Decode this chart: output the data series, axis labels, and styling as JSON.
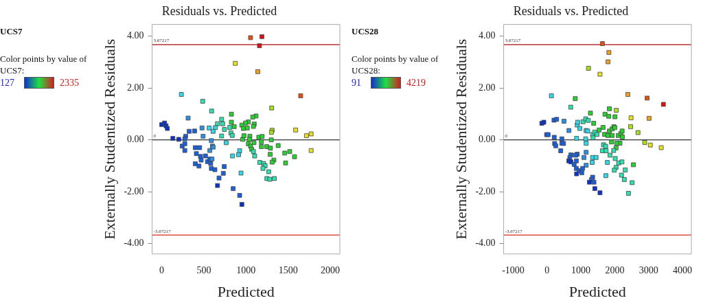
{
  "chart_data": [
    {
      "type": "scatter",
      "title": "Residuals vs. Predicted",
      "xlabel": "Predicted",
      "ylabel": "Externally Studentized Residuals",
      "annotations": [
        "UCS7",
        "Color points by value of UCS7:",
        "127",
        "2335"
      ],
      "x": [
        1054,
        1189,
        1160,
        873,
        1140,
        233,
        1649,
        486,
        1305,
        592,
        827,
        313,
        711,
        1119,
        1080,
        1028,
        995,
        951,
        1098,
        1088,
        969,
        1015,
        1310,
        1302,
        827,
        860,
        808,
        821,
        837,
        744,
        723,
        661,
        636,
        563,
        610,
        478,
        491,
        711,
        390,
        326,
        284,
        0,
        34,
        52,
        67,
        132,
        202,
        274,
        243,
        274,
        274,
        398,
        450,
        411,
        460,
        468,
        398,
        442,
        519,
        543,
        571,
        571,
        589,
        602,
        610,
        581,
        597,
        589,
        631,
        742,
        731,
        680,
        662,
        848,
        925,
        951,
        765,
        840,
        925,
        912,
        941,
        961,
        976,
        1046,
        1041,
        1028,
        1054,
        1095,
        1067,
        1088,
        1103,
        1152,
        1191,
        1183,
        1183,
        1300,
        1246,
        1290,
        1382,
        1287,
        1460,
        1519,
        1576,
        1470,
        1331,
        1310,
        1163,
        1209,
        1227,
        1201,
        1269,
        1248,
        1282,
        1336,
        1589,
        1718,
        1773,
        1773
      ],
      "values": [
        3.94,
        3.98,
        3.63,
        2.95,
        2.63,
        1.75,
        1.7,
        1.49,
        1.23,
        1.11,
        0.99,
        0.84,
        0.79,
        0.92,
        0.88,
        0.69,
        0.65,
        0.57,
        0.61,
        0.52,
        0.44,
        0.46,
        0.37,
        0.29,
        0.68,
        0.51,
        0.48,
        0.27,
        0.17,
        0.4,
        0.62,
        0.62,
        0.47,
        0.46,
        0.33,
        0.46,
        0.14,
        0.15,
        0.34,
        0.33,
        0.14,
        0.59,
        0.65,
        0.54,
        0.44,
        0.06,
        0.02,
        0.04,
        -0.24,
        -0.15,
        -0.41,
        -0.3,
        -0.3,
        -0.53,
        -0.64,
        -0.78,
        -0.92,
        -1.01,
        -0.62,
        -0.84,
        -0.74,
        -0.41,
        -0.03,
        -0.24,
        -0.28,
        -0.91,
        -0.74,
        -1.1,
        -1.15,
        -1.03,
        -1.29,
        -1.47,
        -1.76,
        -1.88,
        -2.14,
        -2.49,
        -0.11,
        -0.62,
        -0.42,
        -0.57,
        -1.28,
        0.02,
        0.16,
        0.14,
        0.02,
        -0.15,
        -0.24,
        -0.11,
        -0.36,
        -0.45,
        -0.62,
        0.1,
        0.13,
        -0.07,
        -0.26,
        0,
        -0.26,
        -0.32,
        -0.22,
        -0.56,
        -0.51,
        -0.45,
        -0.65,
        -0.89,
        -0.78,
        -0.86,
        -0.87,
        -0.91,
        -1,
        -1.1,
        -1.23,
        -1.49,
        -1.52,
        -1.49,
        0.38,
        0.16,
        0.23,
        -0.41
      ],
      "colors": [
        "#e85010",
        "#e01010",
        "#e01010",
        "#e8e020",
        "#f0a020",
        "#30d8e8",
        "#e85010",
        "#30e0b0",
        "#a8e020",
        "#30e0b0",
        "#28d030",
        "#2a8fe6",
        "#30e0b0",
        "#28d030",
        "#28d030",
        "#28d030",
        "#28d030",
        "#28d030",
        "#28d030",
        "#28d030",
        "#28d030",
        "#28d030",
        "#a8e020",
        "#a8e020",
        "#28d030",
        "#28d030",
        "#30e0b0",
        "#30e0b0",
        "#30e0b0",
        "#30e0b0",
        "#30e0b0",
        "#30e0b0",
        "#30d8e8",
        "#30d8e8",
        "#30d8e8",
        "#2a8fe6",
        "#2a8fe6",
        "#30e0b0",
        "#1a5fdc",
        "#1a5fdc",
        "#1a5fdc",
        "#0a32c8",
        "#0a32c8",
        "#0a32c8",
        "#0a32c8",
        "#0a32c8",
        "#0a32c8",
        "#1a5fdc",
        "#1a5fdc",
        "#1a5fdc",
        "#1a5fdc",
        "#1a5fdc",
        "#1a5fdc",
        "#1a5fdc",
        "#1a5fdc",
        "#1a5fdc",
        "#1a5fdc",
        "#1a5fdc",
        "#1a5fdc",
        "#1a5fdc",
        "#1a5fdc",
        "#2a8fe6",
        "#2a8fe6",
        "#2a8fe6",
        "#2a8fe6",
        "#1a5fdc",
        "#2a8fe6",
        "#1a5fdc",
        "#1a5fdc",
        "#1a5fdc",
        "#1a5fdc",
        "#1a5fdc",
        "#0a32c8",
        "#1a5fdc",
        "#1a5fdc",
        "#0a32c8",
        "#30d8e8",
        "#30d8e8",
        "#30d8e8",
        "#30d8e8",
        "#30d8e8",
        "#28d030",
        "#28d030",
        "#28d030",
        "#28d030",
        "#28d030",
        "#28d030",
        "#28d030",
        "#28d030",
        "#30e0b0",
        "#30e0b0",
        "#28d030",
        "#28d030",
        "#28d030",
        "#28d030",
        "#28d030",
        "#28d030",
        "#28d030",
        "#28d030",
        "#28d030",
        "#28d030",
        "#28d030",
        "#28d030",
        "#28d030",
        "#28d030",
        "#28d030",
        "#30e0b0",
        "#30e0b0",
        "#30e0b0",
        "#30e0b0",
        "#30e0b0",
        "#30e0b0",
        "#30e0b0",
        "#30e0b0",
        "#e8e020",
        "#e8e020",
        "#e8e020",
        "#e8e020"
      ],
      "xlim": [
        -114,
        2114
      ],
      "ylim": [
        -4.4,
        4.45
      ],
      "xticks": [
        0,
        500,
        1000,
        1500,
        2000
      ],
      "yticks": [
        {
          "value": -4,
          "label": "-4.00"
        },
        {
          "value": -2,
          "label": "-2.00"
        },
        {
          "value": 0,
          "label": "0.00"
        },
        {
          "value": 2,
          "label": "2.00"
        },
        {
          "value": 4,
          "label": "4.00"
        }
      ],
      "ref_lines": [
        {
          "axis": "y",
          "value": 3.67217,
          "label": "3.67217",
          "color": "#b83232"
        },
        {
          "axis": "y",
          "value": 0,
          "label": "0",
          "color": "#333333"
        },
        {
          "axis": "y",
          "value": -3.67217,
          "label": "-3.67217",
          "color": "#e84a4a"
        }
      ],
      "marker": "square",
      "grid": false,
      "legend": false
    },
    {
      "type": "scatter",
      "title": "Residuals vs. Predicted",
      "xlabel": "Predicted",
      "ylabel": "Externally Studentized Residuals",
      "annotations": [
        "UCS28",
        "Color points by value of UCS28:",
        "91",
        "4219"
      ],
      "x": [
        1635,
        1827,
        1801,
        1224,
        1564,
        128,
        2385,
        2955,
        3436,
        833,
        699,
        1282,
        1840,
        1712,
        1821,
        2045,
        2006,
        2481,
        3013,
        2468,
        2686,
        2885,
        3051,
        3372,
        -154,
        -96,
        -13,
        32,
        212,
        205,
        282,
        500,
        647,
        891,
        904,
        968,
        872,
        1064,
        1141,
        1218,
        1378,
        1154,
        1199,
        1141,
        1154,
        1346,
        1410,
        1359,
        1474,
        1538,
        1654,
        1699,
        1795,
        1840,
        1923,
        1923,
        1974,
        2000,
        2102,
        2180,
        2218,
        2224,
        2154,
        2058,
        1904,
        1667,
        1731,
        1635,
        1744,
        1859,
        2038,
        1968,
        2013,
        2115,
        2212,
        2551,
        2038,
        1987,
        2308,
        2199,
        2282,
        2513,
        2404,
        1782,
        1737,
        1346,
        1449,
        1333,
        1154,
        1090,
        1154,
        891,
        846,
        705,
        673,
        641,
        705,
        801,
        865,
        865,
        949,
        1026,
        872,
        1051,
        1346,
        1314,
        1250,
        1385,
        1410,
        1564,
        224,
        256,
        436,
        436,
        487,
        404
      ],
      "values": [
        3.71,
        3.37,
        3.01,
        2.76,
        2.53,
        1.7,
        1.75,
        1.61,
        1.37,
        1.59,
        1.26,
        1.03,
        1.2,
        0.99,
        0.91,
        1.14,
        0.89,
        0.85,
        0.83,
        0.51,
        0.28,
        -0.1,
        -0.2,
        -0.3,
        0.64,
        0.68,
        0.2,
        0.2,
        0.1,
        0.76,
        0.79,
        0.72,
        0.36,
        0.57,
        0.68,
        0.44,
        0.06,
        0.7,
        0.81,
        0.75,
        0.64,
        0.36,
        0.34,
        0.04,
        -0.13,
        0.21,
        0.3,
        0.08,
        0.21,
        0.38,
        0.48,
        0.21,
        0.17,
        0.34,
        0.42,
        0.17,
        0.51,
        0.47,
        0.17,
        0.25,
        0.34,
        0.11,
        -0.13,
        -0.13,
        -0.08,
        -0.19,
        -0.25,
        -0.42,
        -0.42,
        -0.59,
        -0.31,
        -0.41,
        -0.72,
        -0.89,
        -0.85,
        -0.96,
        -1.06,
        -1.17,
        -1.16,
        -1.36,
        -1.53,
        -1.65,
        -2.06,
        -0.87,
        -1.38,
        -0.68,
        -0.68,
        -0.87,
        -0.48,
        -0.68,
        -0.98,
        -0.55,
        -0.59,
        -0.58,
        -0.68,
        -0.81,
        -0.85,
        -0.95,
        -0.81,
        -1.1,
        -1.19,
        -1.27,
        -1.31,
        -1.1,
        -1.44,
        -1.53,
        -1.63,
        -1.63,
        -1.88,
        -2.04,
        -0.14,
        -0.23,
        0.04,
        -0.13,
        -0.14,
        -0.42
      ],
      "colors": [
        "#e85010",
        "#f0a020",
        "#f0a020",
        "#a8e020",
        "#e8e020",
        "#30d8e8",
        "#f0a020",
        "#e85010",
        "#e01010",
        "#28d030",
        "#30e0b0",
        "#28d030",
        "#28d030",
        "#28d030",
        "#28d030",
        "#a8e020",
        "#28d030",
        "#e8e020",
        "#f0a020",
        "#a8e020",
        "#a8e020",
        "#a8e020",
        "#e8e020",
        "#e8e020",
        "#0a32c8",
        "#0a32c8",
        "#1a5fdc",
        "#1a5fdc",
        "#1a5fdc",
        "#1a5fdc",
        "#1a5fdc",
        "#2a8fe6",
        "#2a8fe6",
        "#30d8e8",
        "#30d8e8",
        "#30d8e8",
        "#30d8e8",
        "#30e0b0",
        "#30e0b0",
        "#30e0b0",
        "#28d030",
        "#30d8e8",
        "#30d8e8",
        "#30d8e8",
        "#30d8e8",
        "#30e0b0",
        "#30e0b0",
        "#30e0b0",
        "#30e0b0",
        "#28d030",
        "#28d030",
        "#28d030",
        "#28d030",
        "#28d030",
        "#28d030",
        "#28d030",
        "#28d030",
        "#28d030",
        "#28d030",
        "#28d030",
        "#28d030",
        "#28d030",
        "#28d030",
        "#28d030",
        "#28d030",
        "#30e0b0",
        "#30e0b0",
        "#30e0b0",
        "#30e0b0",
        "#30e0b0",
        "#28d030",
        "#30e0b0",
        "#30e0b0",
        "#30e0b0",
        "#30e0b0",
        "#28d030",
        "#30e0b0",
        "#30e0b0",
        "#30e0b0",
        "#30e0b0",
        "#30e0b0",
        "#30e0b0",
        "#30e0b0",
        "#30d8e8",
        "#30d8e8",
        "#30d8e8",
        "#30d8e8",
        "#30d8e8",
        "#2a8fe6",
        "#2a8fe6",
        "#2a8fe6",
        "#1a5fdc",
        "#1a5fdc",
        "#1a5fdc",
        "#1a5fdc",
        "#0a32c8",
        "#0a32c8",
        "#1a5fdc",
        "#1a5fdc",
        "#1a5fdc",
        "#1a5fdc",
        "#1a5fdc",
        "#0a32c8",
        "#1a5fdc",
        "#1a5fdc",
        "#1a5fdc",
        "#0a32c8",
        "#1a5fdc",
        "#0a32c8",
        "#0a32c8",
        "#1a5fdc",
        "#1a5fdc",
        "#1a5fdc",
        "#1a5fdc",
        "#1a5fdc",
        "#1a5fdc"
      ],
      "xlim": [
        -1282,
        4263
      ],
      "ylim": [
        -4.4,
        4.45
      ],
      "xticks": [
        -1000,
        0,
        1000,
        2000,
        3000,
        4000
      ],
      "yticks": [
        {
          "value": -4,
          "label": "-4.00"
        },
        {
          "value": -2,
          "label": "-2.00"
        },
        {
          "value": 0,
          "label": "0.00"
        },
        {
          "value": 2,
          "label": "2.00"
        },
        {
          "value": 4,
          "label": "4.00"
        }
      ],
      "ref_lines": [
        {
          "axis": "y",
          "value": 3.67217,
          "label": "3.67217",
          "color": "#b83232"
        },
        {
          "axis": "y",
          "value": 0,
          "label": "0",
          "color": "#333333"
        },
        {
          "axis": "y",
          "value": -3.67217,
          "label": "-3.67217",
          "color": "#e84a4a"
        }
      ],
      "marker": "square",
      "grid": false,
      "legend": false
    }
  ]
}
